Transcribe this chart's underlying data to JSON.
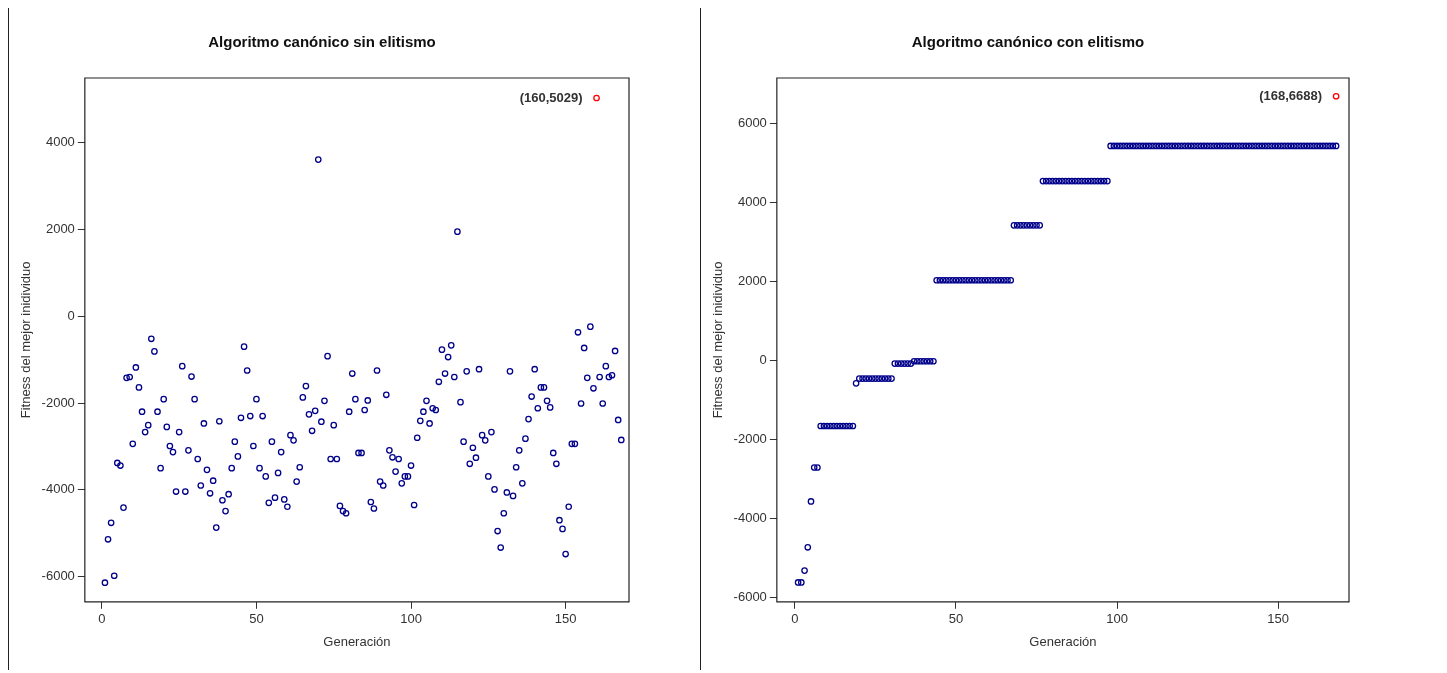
{
  "chart_data": [
    {
      "type": "scatter",
      "title": "Algoritmo canónico sin elitismo",
      "xlabel": "Generación",
      "ylabel": "Fitness del mejor inidividuo",
      "xlim": [
        -5.5,
        170.5
      ],
      "ylim": [
        -6580,
        5490
      ],
      "xticks": [
        0,
        50,
        100,
        150
      ],
      "yticks": [
        -6000,
        -4000,
        -2000,
        0,
        2000,
        4000
      ],
      "grid": false,
      "legend": false,
      "marker": "circle",
      "annotations": [
        {
          "text": "(160,5029)",
          "x": 160,
          "y": 5029
        }
      ],
      "series": [
        {
          "color": "#00008b",
          "x": [
            1,
            2,
            3,
            4,
            5,
            6,
            7,
            8,
            9,
            10,
            11,
            12,
            13,
            14,
            15,
            16,
            17,
            18,
            19,
            20,
            21,
            22,
            23,
            24,
            25,
            26,
            27,
            28,
            29,
            30,
            31,
            32,
            33,
            34,
            35,
            36,
            37,
            38,
            39,
            40,
            41,
            42,
            43,
            44,
            45,
            46,
            47,
            48,
            49,
            50,
            51,
            52,
            53,
            54,
            55,
            56,
            57,
            58,
            59,
            60,
            61,
            62,
            63,
            64,
            65,
            66,
            67,
            68,
            69,
            70,
            71,
            72,
            73,
            74,
            75,
            76,
            77,
            78,
            79,
            80,
            81,
            82,
            83,
            84,
            85,
            86,
            87,
            88,
            89,
            90,
            91,
            92,
            93,
            94,
            95,
            96,
            97,
            98,
            99,
            100,
            101,
            102,
            103,
            104,
            105,
            106,
            107,
            108,
            109,
            110,
            111,
            112,
            113,
            114,
            115,
            116,
            117,
            118,
            119,
            120,
            121,
            122,
            123,
            124,
            125,
            126,
            127,
            128,
            129,
            130,
            131,
            132,
            133,
            134,
            135,
            136,
            137,
            138,
            139,
            140,
            141,
            142,
            143,
            144,
            145,
            146,
            147,
            148,
            149,
            150,
            151,
            152,
            153,
            154,
            155,
            156,
            157,
            158,
            159,
            161,
            162,
            163,
            164,
            165,
            166,
            167,
            168
          ],
          "values": [
            -6140,
            -5140,
            -4760,
            -5980,
            -3380,
            -3440,
            -4410,
            -1420,
            -1400,
            -2940,
            -1180,
            -1640,
            -2200,
            -2670,
            -2510,
            -520,
            -810,
            -2200,
            -3500,
            -1910,
            -2550,
            -2990,
            -3130,
            -4040,
            -2670,
            -1150,
            -4040,
            -3090,
            -1390,
            -1910,
            -3290,
            -3900,
            -2470,
            -3540,
            -4080,
            -3790,
            -4870,
            -2420,
            -4240,
            -4490,
            -4100,
            -3500,
            -2890,
            -3230,
            -2340,
            -700,
            -1250,
            -2300,
            -2990,
            -1910,
            -3500,
            -2300,
            -3690,
            -4300,
            -2890,
            -4180,
            -3610,
            -3130,
            -4220,
            -4390,
            -2740,
            -2860,
            -3810,
            -3480,
            -1870,
            -1610,
            -2260,
            -2640,
            -2180,
            3610,
            -2430,
            -1950,
            -920,
            -3290,
            -2510,
            -3290,
            -4370,
            -4490,
            -4540,
            -2200,
            -1320,
            -1910,
            -3150,
            -3150,
            -2160,
            -1940,
            -4280,
            -4430,
            -1250,
            -3810,
            -3900,
            -1810,
            -3090,
            -3250,
            -3580,
            -3290,
            -3850,
            -3690,
            -3690,
            -3440,
            -4350,
            -2800,
            -2410,
            -2200,
            -1950,
            -2470,
            -2120,
            -2160,
            -1510,
            -770,
            -1320,
            -940,
            -670,
            -1400,
            1950,
            -1980,
            -2890,
            -1270,
            -3400,
            -3030,
            -3260,
            -1220,
            -2740,
            -2860,
            -3690,
            -2670,
            -3990,
            -4950,
            -5330,
            -4540,
            -4060,
            -1270,
            -4140,
            -3480,
            -3090,
            -3850,
            -2820,
            -2370,
            -1850,
            -1220,
            -2120,
            -1640,
            -1640,
            -1950,
            -2100,
            -3150,
            -3400,
            -4700,
            -4900,
            -5480,
            -4390,
            -2940,
            -2940,
            -370,
            -2010,
            -730,
            -1420,
            -240,
            -1660,
            -1400,
            -2010,
            -1150,
            -1400,
            -1360,
            -800,
            -2390,
            -2850
          ]
        },
        {
          "color": "#ff0000",
          "x": [
            160
          ],
          "values": [
            5029
          ]
        }
      ]
    },
    {
      "type": "scatter",
      "title": "Algoritmo canónico con elitismo",
      "xlabel": "Generación",
      "ylabel": "Fitness del mejor inidividuo",
      "xlim": [
        -5.6,
        172
      ],
      "ylim": [
        -6110,
        7150
      ],
      "xticks": [
        0,
        50,
        100,
        150
      ],
      "yticks": [
        -6000,
        -4000,
        -2000,
        0,
        2000,
        4000,
        6000
      ],
      "grid": false,
      "legend": false,
      "marker": "circle",
      "annotations": [
        {
          "text": "(168,6688)",
          "x": 168,
          "y": 6688
        }
      ],
      "series": [
        {
          "color": "#00008b",
          "x": [
            1,
            2,
            3,
            4,
            5,
            6,
            7,
            8,
            9,
            10,
            11,
            12,
            13,
            14,
            15,
            16,
            17,
            18,
            19,
            20,
            21,
            22,
            23,
            24,
            25,
            26,
            27,
            28,
            29,
            30,
            31,
            32,
            33,
            34,
            35,
            36,
            37,
            38,
            39,
            40,
            41,
            42,
            43,
            44,
            45,
            46,
            47,
            48,
            49,
            50,
            51,
            52,
            53,
            54,
            55,
            56,
            57,
            58,
            59,
            60,
            61,
            62,
            63,
            64,
            65,
            66,
            67,
            68,
            69,
            70,
            71,
            72,
            73,
            74,
            75,
            76,
            77,
            78,
            79,
            80,
            81,
            82,
            83,
            84,
            85,
            86,
            87,
            88,
            89,
            90,
            91,
            92,
            93,
            94,
            95,
            96,
            97,
            98,
            99,
            100,
            101,
            102,
            103,
            104,
            105,
            106,
            107,
            108,
            109,
            110,
            111,
            112,
            113,
            114,
            115,
            116,
            117,
            118,
            119,
            120,
            121,
            122,
            123,
            124,
            125,
            126,
            127,
            128,
            129,
            130,
            131,
            132,
            133,
            134,
            135,
            136,
            137,
            138,
            139,
            140,
            141,
            142,
            143,
            144,
            145,
            146,
            147,
            148,
            149,
            150,
            151,
            152,
            153,
            154,
            155,
            156,
            157,
            158,
            159,
            160,
            161,
            162,
            163,
            164,
            165,
            166,
            167,
            168
          ],
          "values": [
            -5620,
            -5620,
            -5320,
            -4730,
            -3570,
            -2710,
            -2710,
            -1660,
            -1660,
            -1660,
            -1660,
            -1660,
            -1660,
            -1660,
            -1660,
            -1660,
            -1660,
            -1660,
            -580,
            -460,
            -460,
            -460,
            -460,
            -460,
            -460,
            -460,
            -460,
            -460,
            -460,
            -460,
            -80,
            -80,
            -80,
            -80,
            -80,
            -80,
            -20,
            -20,
            -20,
            -20,
            -20,
            -20,
            -20,
            2030,
            2030,
            2030,
            2030,
            2030,
            2030,
            2030,
            2030,
            2030,
            2030,
            2030,
            2030,
            2030,
            2030,
            2030,
            2030,
            2030,
            2030,
            2030,
            2030,
            2030,
            2030,
            2030,
            2030,
            3420,
            3420,
            3420,
            3420,
            3420,
            3420,
            3420,
            3420,
            3420,
            4540,
            4540,
            4540,
            4540,
            4540,
            4540,
            4540,
            4540,
            4540,
            4540,
            4540,
            4540,
            4540,
            4540,
            4540,
            4540,
            4540,
            4540,
            4540,
            4540,
            4540,
            5430,
            5430,
            5430,
            5430,
            5430,
            5430,
            5430,
            5430,
            5430,
            5430,
            5430,
            5430,
            5430,
            5430,
            5430,
            5430,
            5430,
            5430,
            5430,
            5430,
            5430,
            5430,
            5430,
            5430,
            5430,
            5430,
            5430,
            5430,
            5430,
            5430,
            5430,
            5430,
            5430,
            5430,
            5430,
            5430,
            5430,
            5430,
            5430,
            5430,
            5430,
            5430,
            5430,
            5430,
            5430,
            5430,
            5430,
            5430,
            5430,
            5430,
            5430,
            5430,
            5430,
            5430,
            5430,
            5430,
            5430,
            5430,
            5430,
            5430,
            5430,
            5430,
            5430,
            5430,
            5430,
            5430,
            5430,
            5430,
            5430,
            5430,
            5430
          ]
        },
        {
          "color": "#ff0000",
          "x": [
            168
          ],
          "values": [
            6688
          ]
        }
      ]
    }
  ]
}
